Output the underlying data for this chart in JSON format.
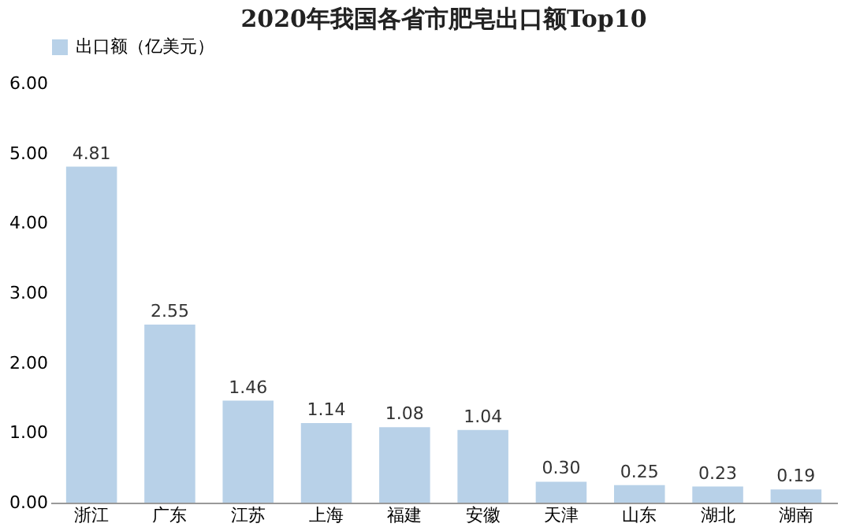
{
  "chart_data": {
    "type": "bar",
    "title": "2020年我国各省市肥皂出口额Top10",
    "categories": [
      "浙江",
      "广东",
      "江苏",
      "上海",
      "福建",
      "安徽",
      "天津",
      "山东",
      "湖北",
      "湖南"
    ],
    "series": [
      {
        "name": "出口额（亿美元）",
        "color": "#b8d1e8",
        "values": [
          4.81,
          2.55,
          1.46,
          1.14,
          1.08,
          1.04,
          0.3,
          0.25,
          0.23,
          0.19
        ],
        "value_labels": [
          "4.81",
          "2.55",
          "1.46",
          "1.14",
          "1.08",
          "1.04",
          "0.30",
          "0.25",
          "0.23",
          "0.19"
        ]
      }
    ],
    "ylim": [
      0,
      6
    ],
    "yticks": [
      {
        "value": 0,
        "label": "0.00"
      },
      {
        "value": 1,
        "label": "1.00"
      },
      {
        "value": 2,
        "label": "2.00"
      },
      {
        "value": 3,
        "label": "3.00"
      },
      {
        "value": 4,
        "label": "4.00"
      },
      {
        "value": 5,
        "label": "5.00"
      },
      {
        "value": 6,
        "label": "6.00"
      }
    ],
    "grid": false,
    "legend": "top"
  }
}
